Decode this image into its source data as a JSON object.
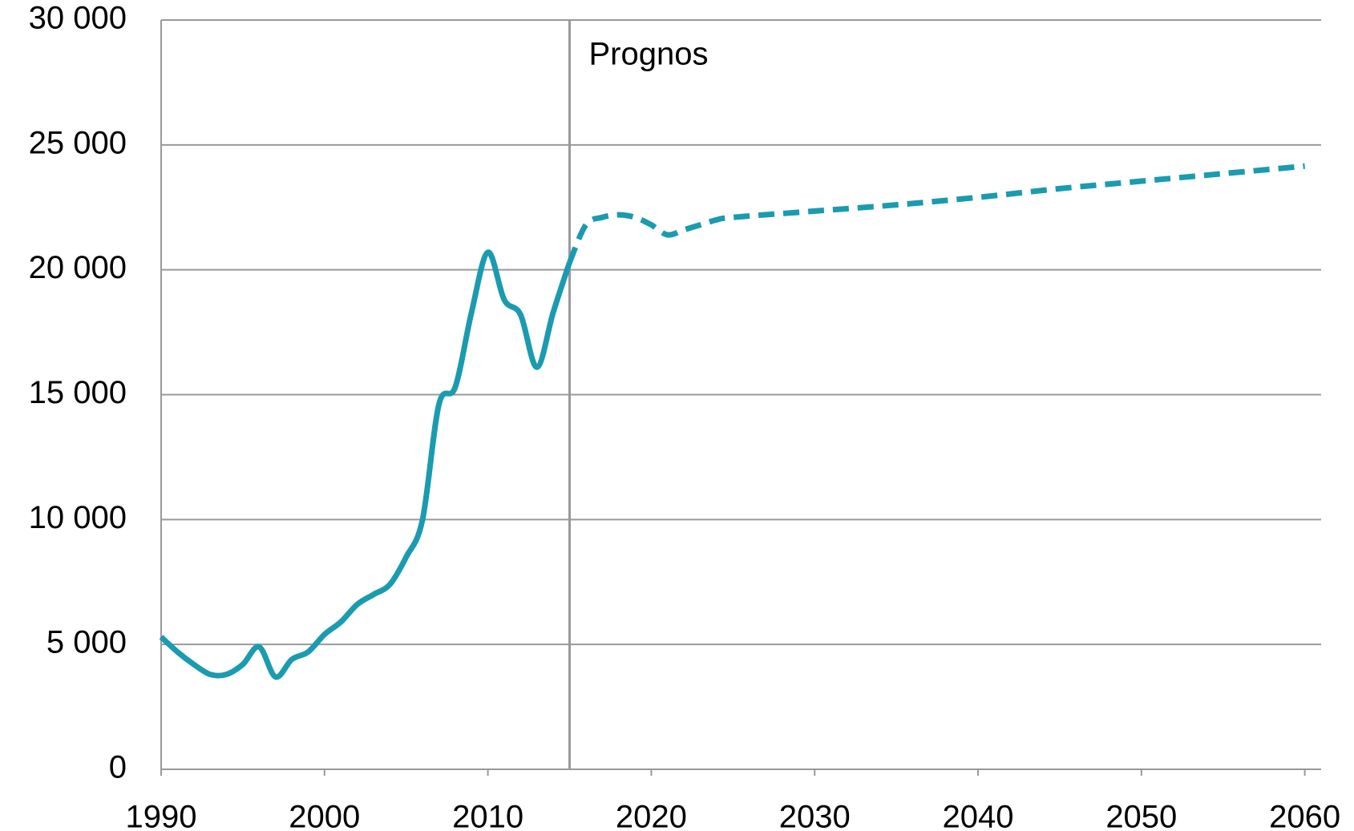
{
  "chart_data": {
    "type": "line",
    "series": [
      {
        "color": "#1a9bb0",
        "dashed": false,
        "x": [
          1990,
          1991,
          1992,
          1993,
          1994,
          1995,
          1996,
          1997,
          1998,
          1999,
          2000,
          2001,
          2002,
          2003,
          2004,
          2005,
          2006,
          2007,
          2008,
          2009,
          2010,
          2011,
          2012,
          2013,
          2014,
          2015
        ],
        "values": [
          5300,
          4700,
          4200,
          3800,
          3800,
          4200,
          4900,
          3700,
          4400,
          4700,
          5400,
          5900,
          6600,
          7000,
          7400,
          8500,
          10000,
          14600,
          15300,
          18300,
          20700,
          18800,
          18200,
          16100,
          18300,
          20300
        ]
      },
      {
        "color": "#1a9bb0",
        "dashed": true,
        "x": [
          2015,
          2016,
          2017,
          2018,
          2019,
          2020,
          2021,
          2022,
          2023,
          2024,
          2025,
          2030,
          2035,
          2040,
          2045,
          2050,
          2055,
          2060
        ],
        "values": [
          20300,
          21800,
          22100,
          22200,
          22100,
          21800,
          21400,
          21600,
          21800,
          22000,
          22100,
          22350,
          22600,
          22900,
          23250,
          23550,
          23850,
          24150
        ]
      }
    ],
    "annotations": [
      {
        "text": "Prognos",
        "x": 2015
      }
    ],
    "xlim": [
      1990,
      2061
    ],
    "ylim": [
      0,
      30000
    ],
    "xticks": [
      1990,
      2000,
      2010,
      2020,
      2030,
      2040,
      2050,
      2060
    ],
    "yticks": [
      0,
      {
        "value": 5000,
        "label": "5 000"
      },
      {
        "value": 10000,
        "label": "10 000"
      },
      {
        "value": 15000,
        "label": "15 000"
      },
      {
        "value": 20000,
        "label": "20 000"
      },
      {
        "value": 25000,
        "label": "25 000"
      },
      {
        "value": 30000,
        "label": "30 000"
      }
    ],
    "grid": true
  }
}
